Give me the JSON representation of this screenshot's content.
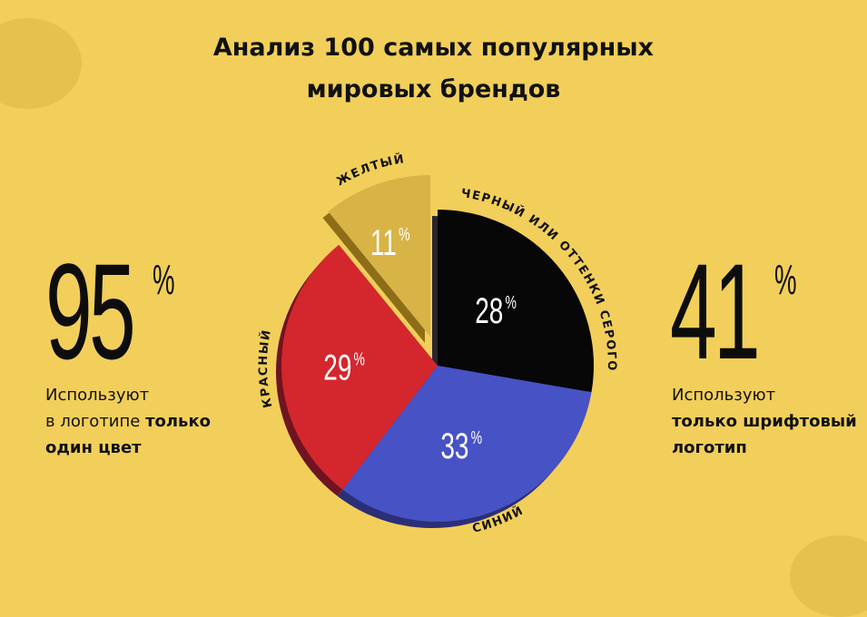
{
  "title": {
    "line1": "Анализ 100 самых популярных",
    "line2": "мировых брендов"
  },
  "left_stat": {
    "value": "95",
    "unit": "%",
    "line1": "Используют",
    "line2_normal": "в логотипе ",
    "line2_bold": "только",
    "line3_bold": "один цвет"
  },
  "right_stat": {
    "value": "41",
    "unit": "%",
    "line1": "Используют",
    "line2_bold": "только шрифтовый",
    "line3_bold": "логотип"
  },
  "chart_data": {
    "type": "pie",
    "title": "Анализ 100 самых популярных мировых брендов",
    "slices": [
      {
        "label": "ЧЕРНЫЙ ИЛИ ОТТЕНКИ СЕРОГО",
        "value": 28,
        "value_label": "28",
        "color": "#070707",
        "shadow": "#2a2430"
      },
      {
        "label": "СИНИЙ",
        "value": 33,
        "value_label": "33",
        "color": "#4752c4",
        "shadow": "#2c2f78"
      },
      {
        "label": "КРАСНЫЙ",
        "value": 29,
        "value_label": "29",
        "color": "#d3272d",
        "shadow": "#6f1420"
      },
      {
        "label": "ЖЕЛТЫЙ",
        "value": 11,
        "value_label": "11",
        "color": "#d8b447",
        "shadow": "#8e6d18"
      }
    ],
    "unit": "%"
  }
}
